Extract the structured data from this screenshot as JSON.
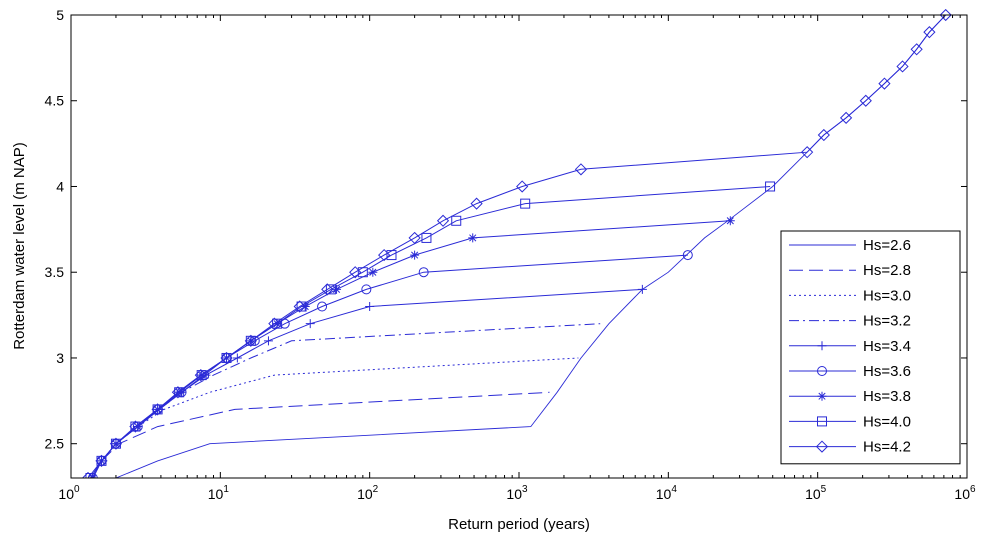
{
  "chart_data": {
    "type": "line",
    "xlabel": "Return period  (years)",
    "ylabel": "Rotterdam water level (m NAP)",
    "xscale": "log",
    "xlim": [
      1,
      1000000
    ],
    "ylim": [
      2.3,
      5.0
    ],
    "x_ticks": [
      {
        "value": 1,
        "base": "10",
        "exp": "0"
      },
      {
        "value": 10,
        "base": "10",
        "exp": "1"
      },
      {
        "value": 100,
        "base": "10",
        "exp": "2"
      },
      {
        "value": 1000,
        "base": "10",
        "exp": "3"
      },
      {
        "value": 10000,
        "base": "10",
        "exp": "4"
      },
      {
        "value": 100000,
        "base": "10",
        "exp": "5"
      },
      {
        "value": 1000000,
        "base": "10",
        "exp": "6"
      }
    ],
    "y_ticks": [
      "2.5",
      "3",
      "3.5",
      "4",
      "4.5",
      "5"
    ],
    "grid": false,
    "legend_position": "right",
    "line_color": "#2b2bd6",
    "series": [
      {
        "name": "Hs=2.6",
        "style": "solid-thin",
        "marker": "none",
        "points": [
          [
            1.35,
            2.2
          ],
          [
            2,
            2.3
          ],
          [
            3.8,
            2.4
          ],
          [
            8.5,
            2.5
          ],
          [
            1200,
            2.6
          ],
          [
            1800,
            2.8
          ],
          [
            2600,
            3.0
          ],
          [
            4000,
            3.2
          ],
          [
            6700,
            3.4
          ],
          [
            10000,
            3.5
          ],
          [
            17500,
            3.7
          ],
          [
            25000,
            3.8
          ],
          [
            50000,
            4.0
          ],
          [
            85000,
            4.2
          ],
          [
            110000,
            4.3
          ],
          [
            155000,
            4.4
          ],
          [
            210000,
            4.5
          ],
          [
            280000,
            4.6
          ],
          [
            370000,
            4.7
          ],
          [
            460000,
            4.8
          ],
          [
            560000,
            4.9
          ],
          [
            720000,
            5.0
          ]
        ]
      },
      {
        "name": "Hs=2.8",
        "style": "longdash",
        "marker": "none",
        "points": [
          [
            1.35,
            2.3
          ],
          [
            1.6,
            2.4
          ],
          [
            2.1,
            2.5
          ],
          [
            3.8,
            2.6
          ],
          [
            12.5,
            2.7
          ],
          [
            1600,
            2.8
          ]
        ]
      },
      {
        "name": "Hs=3.0",
        "style": "dotted",
        "marker": "none",
        "points": [
          [
            1.4,
            2.3
          ],
          [
            1.6,
            2.4
          ],
          [
            2,
            2.5
          ],
          [
            2.8,
            2.6
          ],
          [
            4.2,
            2.7
          ],
          [
            8.5,
            2.8
          ],
          [
            23,
            2.9
          ],
          [
            2500,
            3.0
          ]
        ]
      },
      {
        "name": "Hs=3.2",
        "style": "dashdot",
        "marker": "none",
        "points": [
          [
            1.4,
            2.3
          ],
          [
            1.6,
            2.4
          ],
          [
            2,
            2.5
          ],
          [
            2.8,
            2.6
          ],
          [
            3.9,
            2.7
          ],
          [
            5.5,
            2.8
          ],
          [
            9,
            2.9
          ],
          [
            16,
            3.0
          ],
          [
            30,
            3.1
          ],
          [
            3500,
            3.2
          ]
        ]
      },
      {
        "name": "Hs=3.4",
        "style": "solid",
        "marker": "plus",
        "points": [
          [
            1.4,
            2.3
          ],
          [
            1.6,
            2.4
          ],
          [
            2,
            2.5
          ],
          [
            2.8,
            2.6
          ],
          [
            3.9,
            2.7
          ],
          [
            5.5,
            2.8
          ],
          [
            8,
            2.9
          ],
          [
            13,
            3.0
          ],
          [
            21,
            3.1
          ],
          [
            40,
            3.2
          ],
          [
            100,
            3.3
          ],
          [
            6700,
            3.4
          ]
        ]
      },
      {
        "name": "Hs=3.6",
        "style": "solid",
        "marker": "circle",
        "points": [
          [
            1.4,
            2.3
          ],
          [
            1.6,
            2.4
          ],
          [
            2,
            2.5
          ],
          [
            2.8,
            2.6
          ],
          [
            3.8,
            2.7
          ],
          [
            5.5,
            2.8
          ],
          [
            7.8,
            2.9
          ],
          [
            11,
            3.0
          ],
          [
            17,
            3.1
          ],
          [
            27,
            3.2
          ],
          [
            48,
            3.3
          ],
          [
            95,
            3.4
          ],
          [
            230,
            3.5
          ],
          [
            13500,
            3.6
          ]
        ]
      },
      {
        "name": "Hs=3.8",
        "style": "solid",
        "marker": "star",
        "points": [
          [
            1.4,
            2.3
          ],
          [
            1.6,
            2.4
          ],
          [
            2,
            2.5
          ],
          [
            2.8,
            2.6
          ],
          [
            3.8,
            2.7
          ],
          [
            5.3,
            2.8
          ],
          [
            7.5,
            2.9
          ],
          [
            11,
            3.0
          ],
          [
            16,
            3.1
          ],
          [
            24,
            3.2
          ],
          [
            37,
            3.3
          ],
          [
            60,
            3.4
          ],
          [
            105,
            3.5
          ],
          [
            200,
            3.6
          ],
          [
            490,
            3.7
          ],
          [
            26000,
            3.8
          ]
        ]
      },
      {
        "name": "Hs=4.0",
        "style": "solid",
        "marker": "square",
        "points": [
          [
            1.35,
            2.3
          ],
          [
            1.6,
            2.4
          ],
          [
            2,
            2.5
          ],
          [
            2.7,
            2.6
          ],
          [
            3.8,
            2.7
          ],
          [
            5.3,
            2.8
          ],
          [
            7.5,
            2.9
          ],
          [
            11,
            3.0
          ],
          [
            16,
            3.1
          ],
          [
            24,
            3.2
          ],
          [
            35,
            3.3
          ],
          [
            55,
            3.4
          ],
          [
            90,
            3.5
          ],
          [
            140,
            3.6
          ],
          [
            240,
            3.7
          ],
          [
            380,
            3.8
          ],
          [
            1100,
            3.9
          ],
          [
            48000,
            4.0
          ]
        ]
      },
      {
        "name": "Hs=4.2",
        "style": "solid",
        "marker": "diamond",
        "points": [
          [
            1.3,
            2.3
          ],
          [
            1.6,
            2.4
          ],
          [
            2,
            2.5
          ],
          [
            2.7,
            2.6
          ],
          [
            3.8,
            2.7
          ],
          [
            5.2,
            2.8
          ],
          [
            7.4,
            2.9
          ],
          [
            11,
            3.0
          ],
          [
            16,
            3.1
          ],
          [
            23,
            3.2
          ],
          [
            34,
            3.3
          ],
          [
            52,
            3.4
          ],
          [
            80,
            3.5
          ],
          [
            125,
            3.6
          ],
          [
            200,
            3.7
          ],
          [
            310,
            3.8
          ],
          [
            520,
            3.9
          ],
          [
            1050,
            4.0
          ],
          [
            2600,
            4.1
          ],
          [
            85000,
            4.2
          ],
          [
            110000,
            4.3
          ],
          [
            155000,
            4.4
          ],
          [
            210000,
            4.5
          ],
          [
            280000,
            4.6
          ],
          [
            370000,
            4.7
          ],
          [
            460000,
            4.8
          ],
          [
            560000,
            4.9
          ],
          [
            720000,
            5.0
          ]
        ]
      }
    ]
  }
}
